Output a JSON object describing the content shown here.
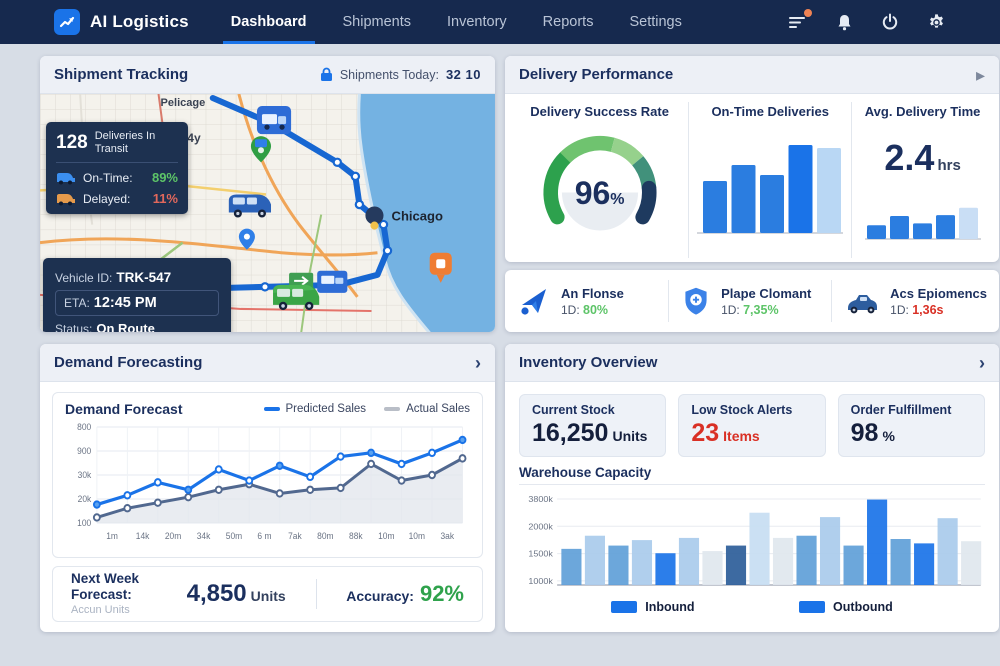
{
  "nav": {
    "brand": "AI Logistics",
    "items": [
      {
        "label": "Dashboard",
        "active": true
      },
      {
        "label": "Shipments",
        "active": false
      },
      {
        "label": "Inventory",
        "active": false
      },
      {
        "label": "Reports",
        "active": false
      },
      {
        "label": "Settings",
        "active": false
      }
    ]
  },
  "shipment_tracking": {
    "title": "Shipment Tracking",
    "shipments_today_label": "Shipments Today:",
    "shipments_today_value": "32 10",
    "map_labels": {
      "region": "Pelicage",
      "street": "34y",
      "city": "Chicago"
    },
    "transit_card": {
      "count": "128",
      "label": "Deliveries In Transit",
      "on_time_label": "On-Time:",
      "on_time_value": "89%",
      "delayed_label": "Delayed:",
      "delayed_value": "11%"
    },
    "vehicle_card": {
      "vehicle_label": "Vehicle ID:",
      "vehicle_value": "TRK-547",
      "eta_label": "ETA:",
      "eta_value": "12:45 PM",
      "status_label": "Status:",
      "status_value": "On Route"
    }
  },
  "delivery_performance": {
    "title": "Delivery Performance",
    "gauge_label": "Delivery Success Rate",
    "gauge_value": "96",
    "gauge_unit": "%",
    "bars_label": "On-Time Deliveries",
    "avg_label": "Avg. Delivery Time",
    "avg_value": "2.4",
    "avg_unit": "hrs",
    "footer": [
      {
        "name": "An Flonse",
        "stat_label": "1D:",
        "stat_value": "80%"
      },
      {
        "name": "Plape Clomant",
        "stat_label": "1D:",
        "stat_value": "7,35%"
      },
      {
        "name": "Acs Epiomencs",
        "stat_label": "1D:",
        "stat_value": "1,36s"
      }
    ]
  },
  "demand_forecasting": {
    "title": "Demand Forecasting",
    "chart_title": "Demand Forecast",
    "legend_predicted": "Predicted Sales",
    "legend_actual": "Actual Sales",
    "forecast_label": "Next Week Forecast:",
    "forecast_sub": "Accun Units",
    "forecast_value": "4,850",
    "forecast_unit": "Units",
    "accuracy_label": "Accuracy:",
    "accuracy_value": "92%"
  },
  "inventory_overview": {
    "title": "Inventory Overview",
    "stats": [
      {
        "label": "Current Stock",
        "value": "16,250",
        "unit": "Units"
      },
      {
        "label": "Low Stock Alerts",
        "value": "23",
        "unit": "Items"
      },
      {
        "label": "Order Fulfillment",
        "value": "98",
        "unit": "%"
      }
    ],
    "warehouse_title": "Warehouse Capacity",
    "legend_inbound": "Inbound",
    "legend_outbound": "Outbound"
  },
  "colors": {
    "accent": "#1a73e8",
    "navy": "#1b2f5e",
    "green": "#2fa24c",
    "red": "#d93025",
    "nav_bg": "#16294e"
  },
  "chart_data": [
    {
      "id": "on_time_bars",
      "type": "bar",
      "title": "On-Time Deliveries",
      "values": [
        52,
        68,
        58,
        88,
        85
      ],
      "colors": [
        "#2b7de0",
        "#2b7de0",
        "#2b7de0",
        "#1a73e8",
        "#b9d7f4"
      ],
      "ylim": [
        0,
        100
      ]
    },
    {
      "id": "avg_time_bars",
      "type": "bar",
      "values": [
        30,
        50,
        34,
        52,
        68
      ],
      "colors": [
        "#2b7de0",
        "#2b7de0",
        "#2b7de0",
        "#2b7de0",
        "#c9def5"
      ],
      "ylim": [
        0,
        100
      ]
    },
    {
      "id": "demand_forecast",
      "type": "line",
      "title": "Demand Forecast",
      "x_ticks": [
        "1m",
        "14k",
        "20m",
        "34k",
        "50m",
        "6 m",
        "7ak",
        "80m",
        "88k",
        "10m",
        "10m",
        "3ak"
      ],
      "y_ticks": [
        "800",
        "900",
        "30k",
        "20k",
        "100"
      ],
      "ylim_k": [
        5,
        57
      ],
      "grid": true,
      "legend_position": "top-right",
      "series": [
        {
          "name": "Predicted Sales",
          "color": "#1a73e8",
          "values_k": [
            15,
            20,
            27,
            23,
            34,
            28,
            36,
            30,
            41,
            43,
            37,
            43,
            50
          ]
        },
        {
          "name": "Actual Sales",
          "color": "#51688f",
          "values_k": [
            8,
            13,
            16,
            19,
            23,
            26,
            21,
            23,
            24,
            37,
            28,
            31,
            40
          ]
        }
      ]
    },
    {
      "id": "warehouse_capacity",
      "type": "bar",
      "title": "Warehouse Capacity",
      "y_ticks": [
        "3800k",
        "2000k",
        "1500k",
        "1000k"
      ],
      "ylim": [
        0,
        4200
      ],
      "series_legend": [
        "Inbound",
        "Outbound"
      ],
      "bars": [
        {
          "v": 1650,
          "c": "m"
        },
        {
          "v": 2250,
          "c": "l"
        },
        {
          "v": 1800,
          "c": "m"
        },
        {
          "v": 2050,
          "c": "l"
        },
        {
          "v": 1450,
          "c": "b"
        },
        {
          "v": 2150,
          "c": "l"
        },
        {
          "v": 1550,
          "c": "p"
        },
        {
          "v": 1800,
          "c": "n"
        },
        {
          "v": 3300,
          "c": "vl"
        },
        {
          "v": 2150,
          "c": "p"
        },
        {
          "v": 2250,
          "c": "m"
        },
        {
          "v": 3100,
          "c": "l"
        },
        {
          "v": 1800,
          "c": "m"
        },
        {
          "v": 3900,
          "c": "b"
        },
        {
          "v": 2100,
          "c": "m"
        },
        {
          "v": 1900,
          "c": "b"
        },
        {
          "v": 3050,
          "c": "l"
        },
        {
          "v": 2000,
          "c": "p"
        }
      ],
      "palette": {
        "b": "#1a73e8",
        "m": "#5f9fd8",
        "l": "#a9cbec",
        "vl": "#c7ddf2",
        "p": "#dfe7ee",
        "n": "#2c5d99"
      }
    }
  ]
}
